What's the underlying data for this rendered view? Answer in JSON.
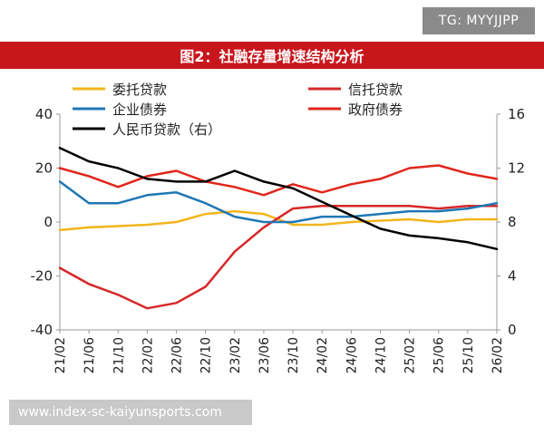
{
  "header": {
    "tag": "TG: MYYJJPP",
    "title": "图2：社融存量增速结构分析"
  },
  "footer": {
    "watermark": "www.index-sc-kaiyunsports.com"
  },
  "chart_data": {
    "type": "line",
    "title": "图2：社融存量增速结构分析",
    "x": [
      "21/02",
      "21/06",
      "21/10",
      "22/02",
      "22/06",
      "22/10",
      "23/02",
      "23/06",
      "23/10",
      "24/02",
      "24/06",
      "24/10",
      "25/02",
      "25/06",
      "25/10",
      "26/02"
    ],
    "left_axis": {
      "ylim": [
        -40,
        40
      ],
      "ticks": [
        "-40",
        "-20",
        "0",
        "20",
        "40"
      ]
    },
    "right_axis": {
      "ylim": [
        0,
        16
      ],
      "ticks": [
        "0",
        "4",
        "8",
        "12",
        "16"
      ]
    },
    "grid": false,
    "legend_position": "top",
    "series": [
      {
        "name": "委托贷款",
        "axis": "left",
        "color": "#f2b51c",
        "values": [
          -3,
          -2,
          -1.5,
          -1,
          0,
          3,
          4,
          3,
          -1,
          -1,
          0,
          0.5,
          1,
          0,
          1,
          1
        ]
      },
      {
        "name": "信托贷款",
        "axis": "left",
        "color": "#d62728",
        "values": [
          -17,
          -23,
          -27,
          -32,
          -30,
          -24,
          -11,
          -2,
          5,
          6,
          6,
          6,
          6,
          5,
          6,
          6
        ]
      },
      {
        "name": "企业债券",
        "axis": "left",
        "color": "#1f77b4",
        "values": [
          15,
          7,
          7,
          10,
          11,
          7,
          2,
          0,
          0,
          2,
          2,
          3,
          4,
          4,
          5,
          7
        ]
      },
      {
        "name": "政府债券",
        "axis": "left",
        "color": "#e1261c",
        "values": [
          20,
          17,
          13,
          17,
          19,
          15,
          13,
          10,
          14,
          11,
          14,
          16,
          20,
          21,
          18,
          16
        ]
      },
      {
        "name": "人民币贷款（右）",
        "axis": "right",
        "color": "#000000",
        "values": [
          13.5,
          12.5,
          12,
          11.2,
          11,
          11,
          11.8,
          11,
          10.5,
          9.5,
          8.5,
          7.5,
          7,
          6.8,
          6.5,
          6
        ]
      }
    ]
  }
}
